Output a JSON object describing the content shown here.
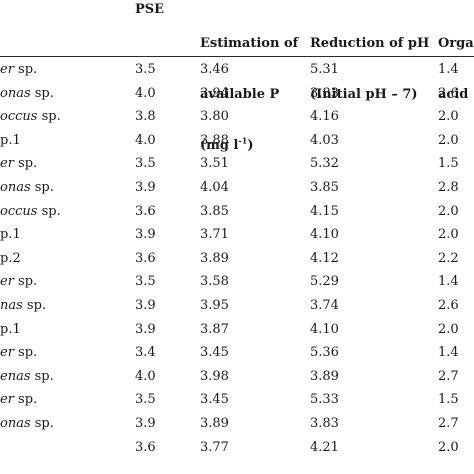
{
  "table": {
    "headers": {
      "pse": "PSE",
      "p_line1": "Estimation of",
      "p_line2": "available P",
      "p_line3": "(mg l-1)",
      "ph_line1": "Reduction of pH",
      "ph_line2": "(Initial pH – 7)",
      "acid_line1": "Orga",
      "acid_line2": "acid ("
    },
    "rows": [
      {
        "name_italic": "er",
        "name_rest": " sp.",
        "pse": "3.5",
        "p": "3.46",
        "ph": "5.31",
        "acid": "1.4"
      },
      {
        "name_italic": "onas",
        "name_rest": " sp.",
        "pse": "4.0",
        "p": "3.94",
        "ph": "3.83",
        "acid": "2.6"
      },
      {
        "name_italic": "occus",
        "name_rest": " sp.",
        "pse": "3.8",
        "p": "3.80",
        "ph": "4.16",
        "acid": "2.0"
      },
      {
        "name_italic": "",
        "name_rest": "p.1",
        "pse": "4.0",
        "p": "3.88",
        "ph": "4.03",
        "acid": "2.0"
      },
      {
        "name_italic": "er",
        "name_rest": " sp.",
        "pse": "3.5",
        "p": "3.51",
        "ph": "5.32",
        "acid": "1.5"
      },
      {
        "name_italic": "onas",
        "name_rest": " sp.",
        "pse": "3.9",
        "p": "4.04",
        "ph": "3.85",
        "acid": "2.8"
      },
      {
        "name_italic": "occus",
        "name_rest": " sp.",
        "pse": "3.6",
        "p": "3.85",
        "ph": "4.15",
        "acid": "2.0"
      },
      {
        "name_italic": "",
        "name_rest": "p.1",
        "pse": "3.9",
        "p": "3.71",
        "ph": "4.10",
        "acid": "2.0"
      },
      {
        "name_italic": "",
        "name_rest": "p.2",
        "pse": "3.6",
        "p": "3.89",
        "ph": "4.12",
        "acid": "2.2"
      },
      {
        "name_italic": "er",
        "name_rest": " sp.",
        "pse": "3.5",
        "p": "3.58",
        "ph": "5.29",
        "acid": "1.4"
      },
      {
        "name_italic": "nas",
        "name_rest": " sp.",
        "pse": "3.9",
        "p": "3.95",
        "ph": "3.74",
        "acid": "2.6"
      },
      {
        "name_italic": "",
        "name_rest": "p.1",
        "pse": "3.9",
        "p": "3.87",
        "ph": "4.10",
        "acid": "2.0"
      },
      {
        "name_italic": "er",
        "name_rest": " sp.",
        "pse": "3.4",
        "p": "3.45",
        "ph": "5.36",
        "acid": "1.4"
      },
      {
        "name_italic": "enas",
        "name_rest": " sp.",
        "pse": "4.0",
        "p": "3.98",
        "ph": "3.89",
        "acid": "2.7"
      },
      {
        "name_italic": "er",
        "name_rest": " sp.",
        "pse": "3.5",
        "p": "3.45",
        "ph": "5.33",
        "acid": "1.5"
      },
      {
        "name_italic": "onas",
        "name_rest": " sp.",
        "pse": "3.9",
        "p": "3.89",
        "ph": "3.83",
        "acid": "2.7"
      },
      {
        "name_italic": "",
        "name_rest": "",
        "pse": "3.6",
        "p": "3.77",
        "ph": "4.21",
        "acid": "2.0"
      }
    ]
  }
}
